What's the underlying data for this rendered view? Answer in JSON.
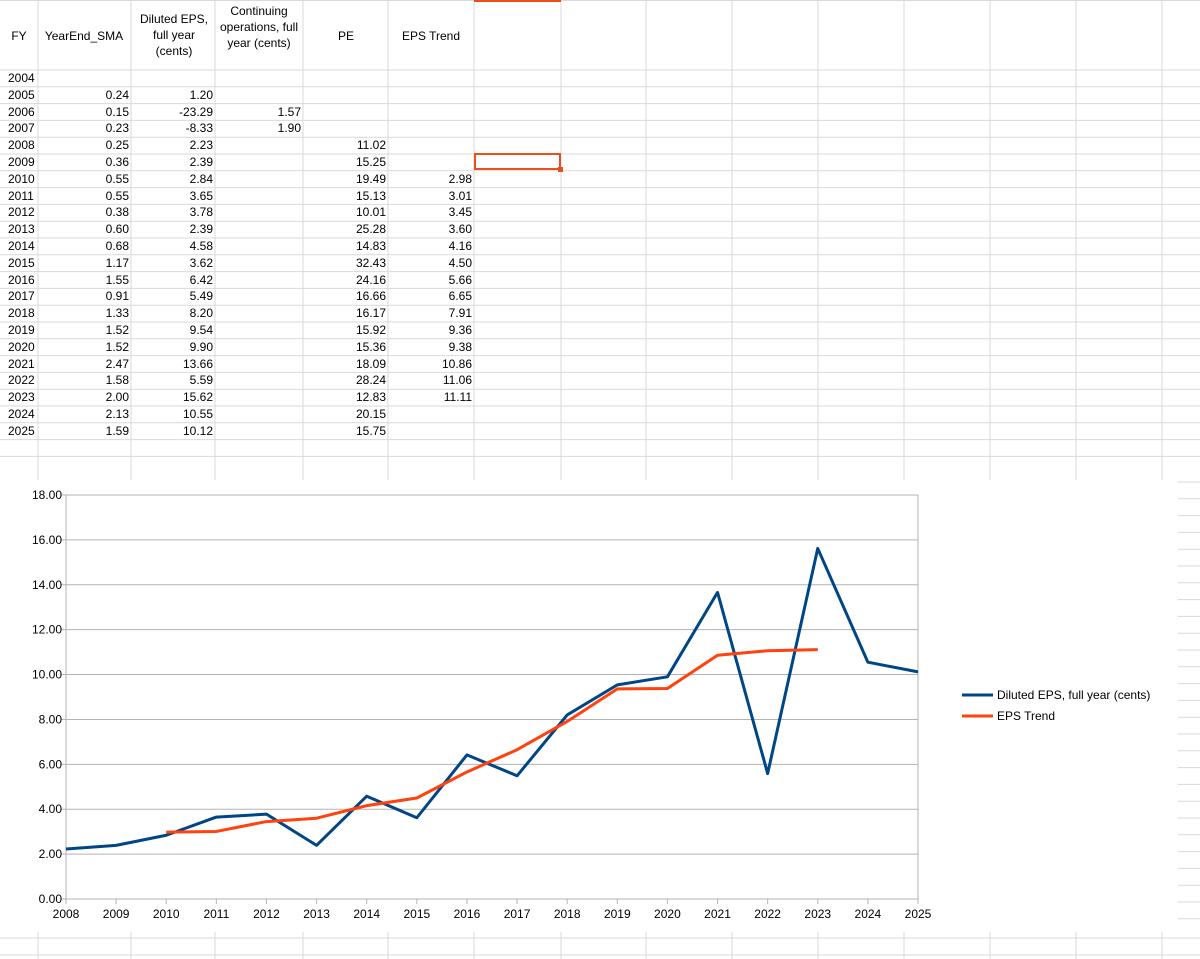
{
  "sheet": {
    "headers": {
      "fy": "FY",
      "sma": "YearEnd_SMA",
      "eps": "Diluted EPS, full year (cents)",
      "cont": "Continuing operations, full year (cents)",
      "pe": "PE",
      "trend": "EPS Trend"
    },
    "rows": [
      {
        "fy": "2004",
        "sma": "",
        "eps": "",
        "cont": "",
        "pe": "",
        "trend": ""
      },
      {
        "fy": "2005",
        "sma": "0.24",
        "eps": "1.20",
        "cont": "",
        "pe": "",
        "trend": ""
      },
      {
        "fy": "2006",
        "sma": "0.15",
        "eps": "-23.29",
        "cont": "1.57",
        "pe": "",
        "trend": ""
      },
      {
        "fy": "2007",
        "sma": "0.23",
        "eps": "-8.33",
        "cont": "1.90",
        "pe": "",
        "trend": ""
      },
      {
        "fy": "2008",
        "sma": "0.25",
        "eps": "2.23",
        "cont": "",
        "pe": "11.02",
        "trend": ""
      },
      {
        "fy": "2009",
        "sma": "0.36",
        "eps": "2.39",
        "cont": "",
        "pe": "15.25",
        "trend": ""
      },
      {
        "fy": "2010",
        "sma": "0.55",
        "eps": "2.84",
        "cont": "",
        "pe": "19.49",
        "trend": "2.98"
      },
      {
        "fy": "2011",
        "sma": "0.55",
        "eps": "3.65",
        "cont": "",
        "pe": "15.13",
        "trend": "3.01"
      },
      {
        "fy": "2012",
        "sma": "0.38",
        "eps": "3.78",
        "cont": "",
        "pe": "10.01",
        "trend": "3.45"
      },
      {
        "fy": "2013",
        "sma": "0.60",
        "eps": "2.39",
        "cont": "",
        "pe": "25.28",
        "trend": "3.60"
      },
      {
        "fy": "2014",
        "sma": "0.68",
        "eps": "4.58",
        "cont": "",
        "pe": "14.83",
        "trend": "4.16"
      },
      {
        "fy": "2015",
        "sma": "1.17",
        "eps": "3.62",
        "cont": "",
        "pe": "32.43",
        "trend": "4.50"
      },
      {
        "fy": "2016",
        "sma": "1.55",
        "eps": "6.42",
        "cont": "",
        "pe": "24.16",
        "trend": "5.66"
      },
      {
        "fy": "2017",
        "sma": "0.91",
        "eps": "5.49",
        "cont": "",
        "pe": "16.66",
        "trend": "6.65"
      },
      {
        "fy": "2018",
        "sma": "1.33",
        "eps": "8.20",
        "cont": "",
        "pe": "16.17",
        "trend": "7.91"
      },
      {
        "fy": "2019",
        "sma": "1.52",
        "eps": "9.54",
        "cont": "",
        "pe": "15.92",
        "trend": "9.36"
      },
      {
        "fy": "2020",
        "sma": "1.52",
        "eps": "9.90",
        "cont": "",
        "pe": "15.36",
        "trend": "9.38"
      },
      {
        "fy": "2021",
        "sma": "2.47",
        "eps": "13.66",
        "cont": "",
        "pe": "18.09",
        "trend": "10.86"
      },
      {
        "fy": "2022",
        "sma": "1.58",
        "eps": "5.59",
        "cont": "",
        "pe": "28.24",
        "trend": "11.06"
      },
      {
        "fy": "2023",
        "sma": "2.00",
        "eps": "15.62",
        "cont": "",
        "pe": "12.83",
        "trend": "11.11"
      },
      {
        "fy": "2024",
        "sma": "2.13",
        "eps": "10.55",
        "cont": "",
        "pe": "20.15",
        "trend": ""
      },
      {
        "fy": "2025",
        "sma": "1.59",
        "eps": "10.12",
        "cont": "",
        "pe": "15.75",
        "trend": ""
      }
    ],
    "selection_color": "#e8501a"
  },
  "chart_data": {
    "type": "line",
    "title": "",
    "xlabel": "",
    "ylabel": "",
    "x": [
      "2008",
      "2009",
      "2010",
      "2011",
      "2012",
      "2013",
      "2014",
      "2015",
      "2016",
      "2017",
      "2018",
      "2019",
      "2020",
      "2021",
      "2022",
      "2023",
      "2024",
      "2025"
    ],
    "ylim": [
      0,
      18
    ],
    "yticks": [
      "0.00",
      "2.00",
      "4.00",
      "6.00",
      "8.00",
      "10.00",
      "12.00",
      "14.00",
      "16.00",
      "18.00"
    ],
    "grid": true,
    "legend": "right",
    "series": [
      {
        "name": "Diluted EPS, full  year (cents)",
        "color": "#004586",
        "values": [
          2.23,
          2.39,
          2.84,
          3.65,
          3.78,
          2.39,
          4.58,
          3.62,
          6.42,
          5.49,
          8.2,
          9.54,
          9.9,
          13.66,
          5.59,
          15.62,
          10.55,
          10.12
        ]
      },
      {
        "name": "EPS Trend",
        "color": "#ff420e",
        "values": [
          null,
          null,
          2.98,
          3.01,
          3.45,
          3.6,
          4.16,
          4.5,
          5.66,
          6.65,
          7.91,
          9.36,
          9.38,
          10.86,
          11.06,
          11.11,
          null,
          null
        ]
      }
    ]
  }
}
